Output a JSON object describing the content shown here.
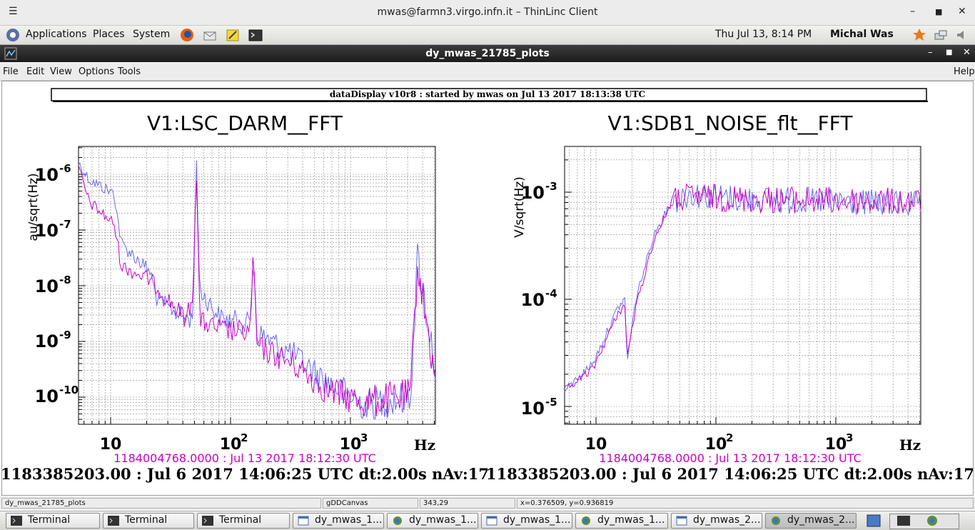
{
  "outer_window": {
    "title": "mwas@farmn3.virgo.infn.it – ThinLinc Client"
  },
  "panel": {
    "menus": [
      "Applications",
      "Places",
      "System"
    ],
    "clock": "Thu Jul 13,  8:14 PM",
    "user": "Michal Was",
    "launchers": [
      "firefox-icon",
      "mail-icon",
      "notes-icon",
      "terminal-icon"
    ]
  },
  "window": {
    "title": "dy_mwas_21785_plots",
    "menus": [
      "File",
      "Edit",
      "View",
      "Options",
      "Tools"
    ],
    "help": "Help"
  },
  "canvas": {
    "banner": "dataDisplay v10r8 : started by mwas on Jul 13 2017 18:13:38 UTC",
    "colors": {
      "trace_a": "#6a6ae8",
      "trace_b": "#c800c8",
      "ref_text": "#c800c8"
    },
    "plots": [
      {
        "title": "V1:LSC_DARM__FFT",
        "ylabel": "au/sqrt(Hz)",
        "xlabel": "Hz",
        "yticks": [
          "10",
          "10",
          "10",
          "10",
          "10"
        ],
        "ytick_exps": [
          "-6",
          "-7",
          "-8",
          "-9",
          "-10"
        ],
        "xticks": [
          "10",
          "10",
          "10"
        ],
        "xtick_exps": [
          "",
          "2",
          "3"
        ],
        "ref_time": "1184004768.0000 : Jul 13 2017 18:12:30 UTC",
        "cur_time": "1183385203.00 : Jul  6 2017 14:06:25 UTC dt:2.00s nAv:17"
      },
      {
        "title": "V1:SDB1_NOISE_flt__FFT",
        "ylabel": "V/sqrt(Hz)",
        "xlabel": "Hz",
        "yticks": [
          "10",
          "10",
          "10"
        ],
        "ytick_exps": [
          "-3",
          "-4",
          "-5"
        ],
        "xticks": [
          "10",
          "10",
          "10"
        ],
        "xtick_exps": [
          "",
          "2",
          "3"
        ],
        "ref_time": "1184004768.0000 : Jul 13 2017 18:12:30 UTC",
        "cur_time": "1183385203.00 : Jul  6 2017 14:06:25 UTC dt:2.00s nAv:17"
      }
    ]
  },
  "statusbar": {
    "fields": [
      "dy_mwas_21785_plots",
      "gDDCanvas",
      "343,29",
      "x=0.376509, y=0.936819"
    ]
  },
  "taskbar": {
    "tasks": [
      {
        "label": "Terminal",
        "icon": "terminal-icon"
      },
      {
        "label": "Terminal",
        "icon": "terminal-icon"
      },
      {
        "label": "Terminal",
        "icon": "terminal-icon"
      },
      {
        "label": "dy_mwas_1...",
        "icon": "window-icon"
      },
      {
        "label": "dy_mwas_1...",
        "icon": "app-icon"
      },
      {
        "label": "dy_mwas_1...",
        "icon": "window-icon"
      },
      {
        "label": "dy_mwas_1...",
        "icon": "app-icon"
      },
      {
        "label": "dy_mwas_2...",
        "icon": "window-icon"
      },
      {
        "label": "dy_mwas_2...",
        "icon": "app-icon"
      }
    ]
  }
}
